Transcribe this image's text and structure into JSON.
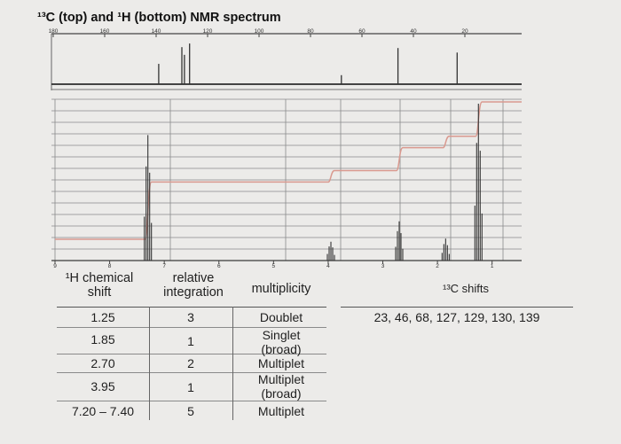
{
  "title": "¹³C (top) and ¹H (bottom) NMR spectrum",
  "colors": {
    "background": "#ecebe9",
    "spectrum_line": "#333333",
    "integral_curve": "#d9998f",
    "grid": "#8a8a8a"
  },
  "chart_data": [
    {
      "type": "line",
      "name": "13C spectrum",
      "x_ticks": [
        180,
        160,
        140,
        120,
        100,
        80,
        60,
        40,
        20
      ],
      "xlim": [
        180,
        0
      ],
      "x_reversed": true,
      "peaks": [
        {
          "x": 139,
          "y": 0.45
        },
        {
          "x": 130,
          "y": 0.82
        },
        {
          "x": 129,
          "y": 0.65
        },
        {
          "x": 127,
          "y": 0.9
        },
        {
          "x": 68,
          "y": 0.2
        },
        {
          "x": 46,
          "y": 0.8
        },
        {
          "x": 23,
          "y": 0.7
        }
      ]
    },
    {
      "type": "line",
      "name": "1H spectrum",
      "x_ticks": [
        9,
        8,
        7,
        6,
        5,
        4,
        3,
        2,
        1
      ],
      "xlim": [
        9,
        0.8
      ],
      "x_reversed": true,
      "grid": true,
      "peaks": [
        {
          "x": 7.3,
          "y": 0.8,
          "multiplet": true
        },
        {
          "x": 3.95,
          "y": 0.12,
          "multiplet": true
        },
        {
          "x": 2.7,
          "y": 0.25,
          "multiplet": true
        },
        {
          "x": 1.85,
          "y": 0.14,
          "multiplet": true
        },
        {
          "x": 1.25,
          "y": 1.0,
          "multiplet": true
        }
      ],
      "integration_steps": [
        {
          "x": 7.3,
          "units": 5
        },
        {
          "x": 3.95,
          "units": 1
        },
        {
          "x": 2.7,
          "units": 2
        },
        {
          "x": 1.85,
          "units": 1
        },
        {
          "x": 1.25,
          "units": 3
        }
      ]
    }
  ],
  "h_table": {
    "headers": {
      "shift": "¹H chemical shift",
      "integration": "relative integration",
      "multiplicity": "multiplicity"
    },
    "rows": [
      {
        "shift": "1.25",
        "integration": "3",
        "multiplicity": "Doublet"
      },
      {
        "shift": "1.85",
        "integration": "1",
        "multiplicity": "Singlet (broad)"
      },
      {
        "shift": "2.70",
        "integration": "2",
        "multiplicity": "Multiplet"
      },
      {
        "shift": "3.95",
        "integration": "1",
        "multiplicity": "Multiplet (broad)"
      },
      {
        "shift": "7.20 – 7.40",
        "integration": "5",
        "multiplicity": "Multiplet"
      }
    ]
  },
  "c_table": {
    "header": "¹³C shifts",
    "values": "23, 46, 68, 127, 129, 130, 139"
  }
}
